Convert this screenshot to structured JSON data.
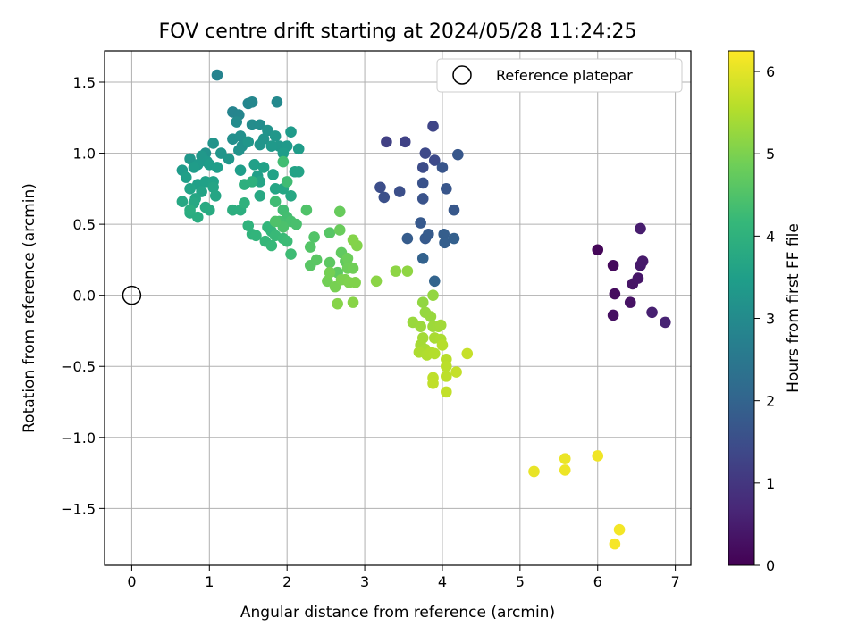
{
  "chart_data": {
    "type": "scatter",
    "title": "FOV centre drift starting at 2024/05/28 11:24:25",
    "xlabel": "Angular distance from reference (arcmin)",
    "ylabel": "Rotation from reference (arcmin)",
    "xlim": [
      -0.35,
      7.2
    ],
    "ylim": [
      -1.9,
      1.72
    ],
    "xticks": [
      "0",
      "1",
      "2",
      "3",
      "4",
      "5",
      "6",
      "7"
    ],
    "yticks": [
      "−1.5",
      "−1.0",
      "−0.5",
      "0.0",
      "0.5",
      "1.0",
      "1.5"
    ],
    "grid": true,
    "legend": {
      "position": "top-right",
      "entries": [
        "Reference platepar"
      ]
    },
    "reference_point": {
      "x": 0.0,
      "y": 0.0,
      "marker": "open-circle"
    },
    "colorbar": {
      "label": "Hours from first FF file",
      "min": 0,
      "max": 6.25,
      "ticks": [
        "0",
        "1",
        "2",
        "3",
        "4",
        "5",
        "6"
      ],
      "colormap": "viridis"
    },
    "colormap_stops": [
      "#440154",
      "#482878",
      "#3e4989",
      "#31688e",
      "#26828e",
      "#1f9e89",
      "#35b779",
      "#6ece58",
      "#b5de2b",
      "#fde725"
    ],
    "series": [
      {
        "points": [
          [
            6.0,
            0.32,
            0.1
          ],
          [
            6.2,
            0.21,
            0.15
          ],
          [
            6.22,
            0.01,
            0.2
          ],
          [
            6.2,
            -0.14,
            0.25
          ],
          [
            6.42,
            -0.05,
            0.3
          ],
          [
            6.45,
            0.08,
            0.35
          ],
          [
            6.52,
            0.12,
            0.38
          ],
          [
            6.55,
            0.21,
            0.42
          ],
          [
            6.58,
            0.24,
            0.45
          ],
          [
            6.55,
            0.47,
            0.5
          ],
          [
            6.7,
            -0.12,
            0.55
          ],
          [
            6.87,
            -0.19,
            0.6
          ],
          [
            3.28,
            1.08,
            1.2
          ],
          [
            3.52,
            1.08,
            1.25
          ],
          [
            3.88,
            1.19,
            1.3
          ],
          [
            3.78,
            1.0,
            1.4
          ],
          [
            3.9,
            0.95,
            1.42
          ],
          [
            3.75,
            0.9,
            1.45
          ],
          [
            3.2,
            0.76,
            1.5
          ],
          [
            3.45,
            0.73,
            1.52
          ],
          [
            3.25,
            0.69,
            1.55
          ],
          [
            3.75,
            0.79,
            1.6
          ],
          [
            3.75,
            0.68,
            1.62
          ],
          [
            4.0,
            0.9,
            1.65
          ],
          [
            4.05,
            0.75,
            1.68
          ],
          [
            4.2,
            0.99,
            1.7
          ],
          [
            4.15,
            0.6,
            1.72
          ],
          [
            3.72,
            0.51,
            1.75
          ],
          [
            3.78,
            0.4,
            1.78
          ],
          [
            3.82,
            0.43,
            1.8
          ],
          [
            3.55,
            0.4,
            1.82
          ],
          [
            4.02,
            0.43,
            1.85
          ],
          [
            4.03,
            0.37,
            1.88
          ],
          [
            4.15,
            0.4,
            1.9
          ],
          [
            3.75,
            0.26,
            1.95
          ],
          [
            3.9,
            0.1,
            2.0
          ],
          [
            1.1,
            1.55,
            2.8
          ],
          [
            1.3,
            1.29,
            2.82
          ],
          [
            1.38,
            1.27,
            2.85
          ],
          [
            1.5,
            1.35,
            2.88
          ],
          [
            1.55,
            1.36,
            2.9
          ],
          [
            1.87,
            1.36,
            2.95
          ],
          [
            1.35,
            1.22,
            3.0
          ],
          [
            1.55,
            1.2,
            3.02
          ],
          [
            1.65,
            1.2,
            3.05
          ],
          [
            1.3,
            1.1,
            3.1
          ],
          [
            1.4,
            1.12,
            3.12
          ],
          [
            1.42,
            1.05,
            3.15
          ],
          [
            1.38,
            1.02,
            3.18
          ],
          [
            1.75,
            1.16,
            3.2
          ],
          [
            1.7,
            1.1,
            3.22
          ],
          [
            1.65,
            1.06,
            3.25
          ],
          [
            1.5,
            1.08,
            3.28
          ],
          [
            1.85,
            1.12,
            3.3
          ],
          [
            1.9,
            1.05,
            3.32
          ],
          [
            1.8,
            1.05,
            3.35
          ],
          [
            2.0,
            1.05,
            3.38
          ],
          [
            2.05,
            1.15,
            3.4
          ],
          [
            2.15,
            1.03,
            3.42
          ],
          [
            1.95,
            1.0,
            3.45
          ],
          [
            1.4,
            0.88,
            3.48
          ],
          [
            1.62,
            0.84,
            3.5
          ],
          [
            1.58,
            0.92,
            3.52
          ],
          [
            1.7,
            0.9,
            3.55
          ],
          [
            1.82,
            0.85,
            3.58
          ],
          [
            2.1,
            0.87,
            3.6
          ],
          [
            2.15,
            0.87,
            3.62
          ],
          [
            1.65,
            0.8,
            3.65
          ],
          [
            1.85,
            0.75,
            3.68
          ],
          [
            1.95,
            0.75,
            3.7
          ],
          [
            2.05,
            0.7,
            3.72
          ],
          [
            1.65,
            0.7,
            3.75
          ],
          [
            0.95,
            1.0,
            3.2
          ],
          [
            1.05,
            1.07,
            3.22
          ],
          [
            1.15,
            1.0,
            3.25
          ],
          [
            1.25,
            0.96,
            3.28
          ],
          [
            0.75,
            0.96,
            3.3
          ],
          [
            0.9,
            0.98,
            3.32
          ],
          [
            0.97,
            0.94,
            3.35
          ],
          [
            0.85,
            0.92,
            3.38
          ],
          [
            0.65,
            0.88,
            3.4
          ],
          [
            0.8,
            0.9,
            3.42
          ],
          [
            1.0,
            0.92,
            3.45
          ],
          [
            1.1,
            0.9,
            3.48
          ],
          [
            0.7,
            0.83,
            3.5
          ],
          [
            0.85,
            0.78,
            3.52
          ],
          [
            0.95,
            0.8,
            3.55
          ],
          [
            1.05,
            0.8,
            3.58
          ],
          [
            0.75,
            0.75,
            3.6
          ],
          [
            0.9,
            0.73,
            3.62
          ],
          [
            1.05,
            0.76,
            3.65
          ],
          [
            1.08,
            0.7,
            3.68
          ],
          [
            0.82,
            0.68,
            3.7
          ],
          [
            0.65,
            0.66,
            3.72
          ],
          [
            0.8,
            0.65,
            3.75
          ],
          [
            0.95,
            0.62,
            3.78
          ],
          [
            1.0,
            0.6,
            3.8
          ],
          [
            0.75,
            0.58,
            3.82
          ],
          [
            0.85,
            0.55,
            3.85
          ],
          [
            0.75,
            0.6,
            3.88
          ],
          [
            1.3,
            0.6,
            3.9
          ],
          [
            1.4,
            0.6,
            3.92
          ],
          [
            1.45,
            0.78,
            3.95
          ],
          [
            1.55,
            0.8,
            3.98
          ],
          [
            1.45,
            0.65,
            4.0
          ],
          [
            1.5,
            0.49,
            4.02
          ],
          [
            1.55,
            0.43,
            4.05
          ],
          [
            1.6,
            0.42,
            4.08
          ],
          [
            1.75,
            0.48,
            4.1
          ],
          [
            1.8,
            0.45,
            4.12
          ],
          [
            1.72,
            0.38,
            4.15
          ],
          [
            1.8,
            0.35,
            4.18
          ],
          [
            1.85,
            0.42,
            4.2
          ],
          [
            1.95,
            0.4,
            4.22
          ],
          [
            2.0,
            0.38,
            4.25
          ],
          [
            2.05,
            0.29,
            4.28
          ],
          [
            1.85,
            0.66,
            4.3
          ],
          [
            1.95,
            0.6,
            4.32
          ],
          [
            2.0,
            0.55,
            4.35
          ],
          [
            1.9,
            0.52,
            4.38
          ],
          [
            2.05,
            0.52,
            4.4
          ],
          [
            2.12,
            0.5,
            4.42
          ],
          [
            1.95,
            0.48,
            4.45
          ],
          [
            1.85,
            0.52,
            4.48
          ],
          [
            2.0,
            0.8,
            4.3
          ],
          [
            1.95,
            0.94,
            4.32
          ],
          [
            2.25,
            0.6,
            4.5
          ],
          [
            2.35,
            0.41,
            4.52
          ],
          [
            2.3,
            0.34,
            4.55
          ],
          [
            2.55,
            0.44,
            4.58
          ],
          [
            2.3,
            0.21,
            4.6
          ],
          [
            2.38,
            0.25,
            4.62
          ],
          [
            2.55,
            0.23,
            4.65
          ],
          [
            2.65,
            0.16,
            4.68
          ],
          [
            2.7,
            0.3,
            4.7
          ],
          [
            2.75,
            0.24,
            4.72
          ],
          [
            2.8,
            0.2,
            4.75
          ],
          [
            2.68,
            0.59,
            4.78
          ],
          [
            2.68,
            0.46,
            4.8
          ],
          [
            2.78,
            0.26,
            4.82
          ],
          [
            2.78,
            0.19,
            4.85
          ],
          [
            2.85,
            0.19,
            4.88
          ],
          [
            2.52,
            0.1,
            4.9
          ],
          [
            2.55,
            0.16,
            4.92
          ],
          [
            2.62,
            0.06,
            4.95
          ],
          [
            2.7,
            0.11,
            4.98
          ],
          [
            2.75,
            0.11,
            5.0
          ],
          [
            2.8,
            0.09,
            5.02
          ],
          [
            2.88,
            0.09,
            5.04
          ],
          [
            2.9,
            0.35,
            5.06
          ],
          [
            2.85,
            0.39,
            5.08
          ],
          [
            2.65,
            -0.06,
            5.1
          ],
          [
            2.85,
            -0.05,
            5.12
          ],
          [
            3.15,
            0.1,
            5.14
          ],
          [
            3.4,
            0.17,
            5.16
          ],
          [
            3.55,
            0.17,
            5.18
          ],
          [
            3.75,
            -0.05,
            5.2
          ],
          [
            3.88,
            0.0,
            5.22
          ],
          [
            3.78,
            -0.12,
            5.24
          ],
          [
            3.85,
            -0.15,
            5.26
          ],
          [
            3.62,
            -0.19,
            5.28
          ],
          [
            3.72,
            -0.22,
            5.3
          ],
          [
            3.88,
            -0.22,
            5.32
          ],
          [
            3.95,
            -0.22,
            5.34
          ],
          [
            3.98,
            -0.21,
            5.36
          ],
          [
            3.75,
            -0.3,
            5.38
          ],
          [
            3.72,
            -0.35,
            5.4
          ],
          [
            3.78,
            -0.38,
            5.42
          ],
          [
            3.9,
            -0.3,
            5.44
          ],
          [
            3.98,
            -0.31,
            5.46
          ],
          [
            3.7,
            -0.4,
            5.48
          ],
          [
            3.8,
            -0.42,
            5.5
          ],
          [
            3.85,
            -0.4,
            5.52
          ],
          [
            3.9,
            -0.41,
            5.54
          ],
          [
            4.0,
            -0.35,
            5.56
          ],
          [
            4.05,
            -0.45,
            5.58
          ],
          [
            4.05,
            -0.5,
            5.6
          ],
          [
            4.05,
            -0.57,
            5.62
          ],
          [
            3.88,
            -0.58,
            5.64
          ],
          [
            3.88,
            -0.62,
            5.66
          ],
          [
            4.05,
            -0.68,
            5.68
          ],
          [
            4.18,
            -0.54,
            5.7
          ],
          [
            4.32,
            -0.41,
            5.72
          ],
          [
            5.18,
            -1.24,
            6.05
          ],
          [
            5.58,
            -1.15,
            6.08
          ],
          [
            5.58,
            -1.23,
            6.1
          ],
          [
            6.0,
            -1.13,
            6.12
          ],
          [
            6.28,
            -1.65,
            6.15
          ],
          [
            6.22,
            -1.75,
            6.18
          ]
        ]
      }
    ]
  }
}
